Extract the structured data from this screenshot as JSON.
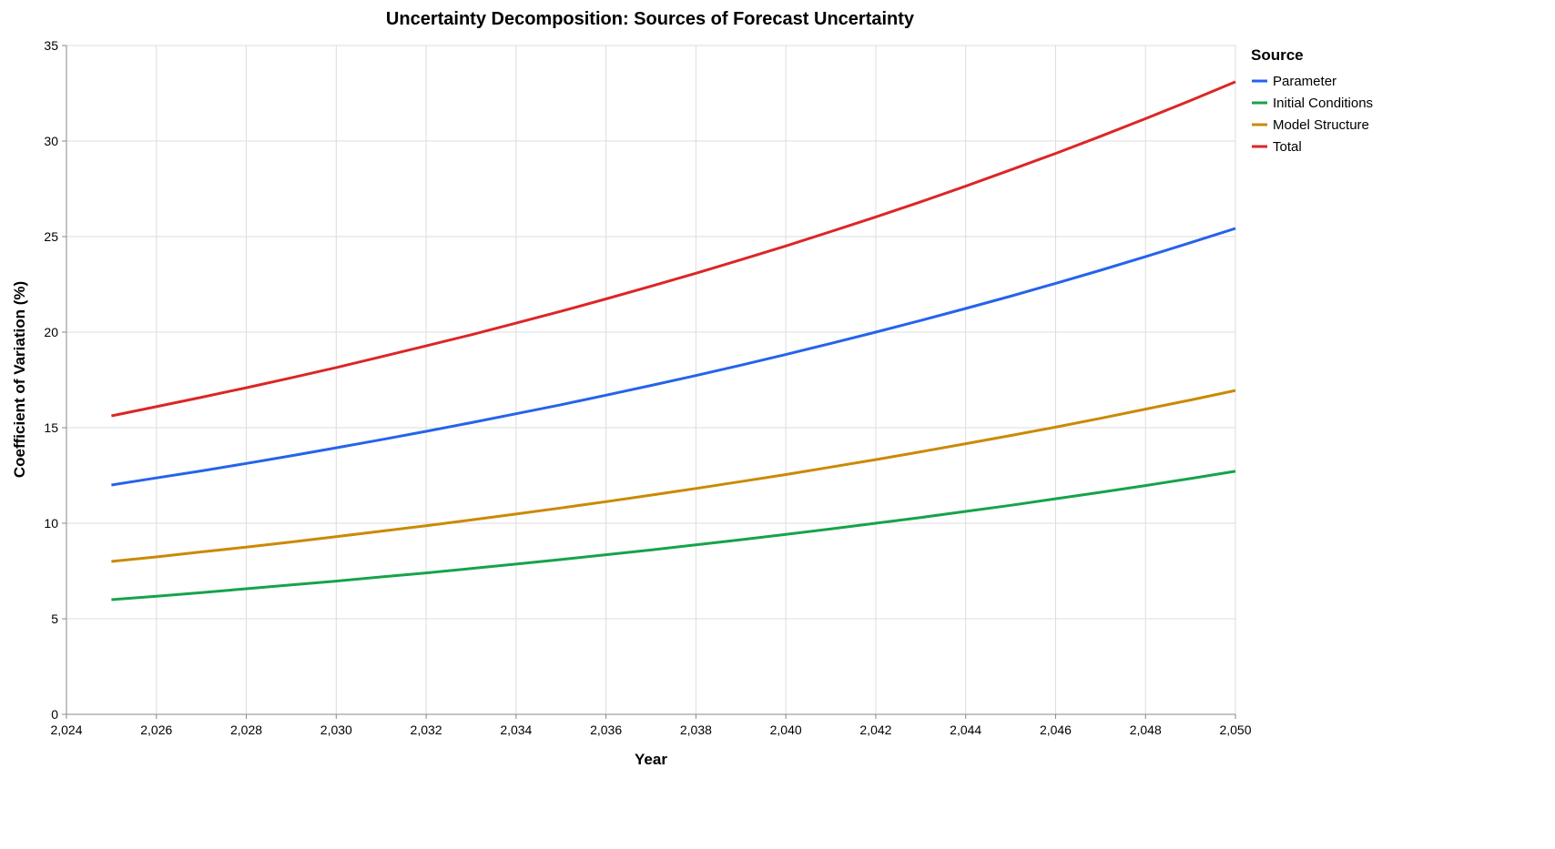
{
  "chart_data": {
    "type": "line",
    "title": "Uncertainty Decomposition: Sources of Forecast Uncertainty",
    "xlabel": "Year",
    "ylabel": "Coefficient of Variation (%)",
    "xlim": [
      2024,
      2050
    ],
    "ylim": [
      0,
      35
    ],
    "grid": true,
    "legend_placement": "top-right",
    "legend_title": "Source",
    "x_ticks": [
      "2,024",
      "2,026",
      "2,028",
      "2,030",
      "2,032",
      "2,034",
      "2,036",
      "2,038",
      "2,040",
      "2,042",
      "2,044",
      "2,046",
      "2,048",
      "2,050"
    ],
    "x_tick_values": [
      2024,
      2026,
      2028,
      2030,
      2032,
      2034,
      2036,
      2038,
      2040,
      2042,
      2044,
      2046,
      2048,
      2050
    ],
    "y_ticks": [
      "0",
      "5",
      "10",
      "15",
      "20",
      "25",
      "30",
      "35"
    ],
    "y_tick_values": [
      0,
      5,
      10,
      15,
      20,
      25,
      30,
      35
    ],
    "x": [
      2025,
      2026,
      2027,
      2028,
      2029,
      2030,
      2031,
      2032,
      2033,
      2034,
      2035,
      2036,
      2037,
      2038,
      2039,
      2040,
      2041,
      2042,
      2043,
      2044,
      2045,
      2046,
      2047,
      2048,
      2049,
      2050
    ],
    "series": [
      {
        "name": "Parameter",
        "color": "#2563eb",
        "values": [
          12.0,
          12.37,
          12.74,
          13.13,
          13.53,
          13.95,
          14.37,
          14.81,
          15.26,
          15.73,
          16.2,
          16.7,
          17.21,
          17.73,
          18.27,
          18.83,
          19.41,
          20.0,
          20.61,
          21.24,
          21.88,
          22.55,
          23.24,
          23.95,
          24.68,
          25.43
        ]
      },
      {
        "name": "Initial Conditions",
        "color": "#16a34a",
        "values": [
          6.0,
          6.18,
          6.37,
          6.57,
          6.77,
          6.97,
          7.19,
          7.4,
          7.63,
          7.86,
          8.1,
          8.35,
          8.6,
          8.87,
          9.14,
          9.42,
          9.7,
          10.0,
          10.3,
          10.62,
          10.94,
          11.28,
          11.62,
          11.97,
          12.34,
          12.72
        ]
      },
      {
        "name": "Model Structure",
        "color": "#ca8a04",
        "values": [
          8.0,
          8.24,
          8.5,
          8.75,
          9.02,
          9.3,
          9.58,
          9.87,
          10.17,
          10.48,
          10.8,
          11.13,
          11.47,
          11.82,
          12.18,
          12.55,
          12.94,
          13.33,
          13.74,
          14.16,
          14.59,
          15.03,
          15.49,
          15.97,
          16.45,
          16.95
        ]
      },
      {
        "name": "Total",
        "color": "#dc2626",
        "values": [
          15.62,
          16.1,
          16.59,
          17.09,
          17.61,
          18.15,
          18.71,
          19.28,
          19.86,
          20.47,
          21.09,
          21.74,
          22.4,
          23.08,
          23.79,
          24.51,
          25.26,
          26.03,
          26.82,
          27.64,
          28.49,
          29.35,
          30.25,
          31.17,
          32.12,
          33.1
        ]
      }
    ]
  }
}
